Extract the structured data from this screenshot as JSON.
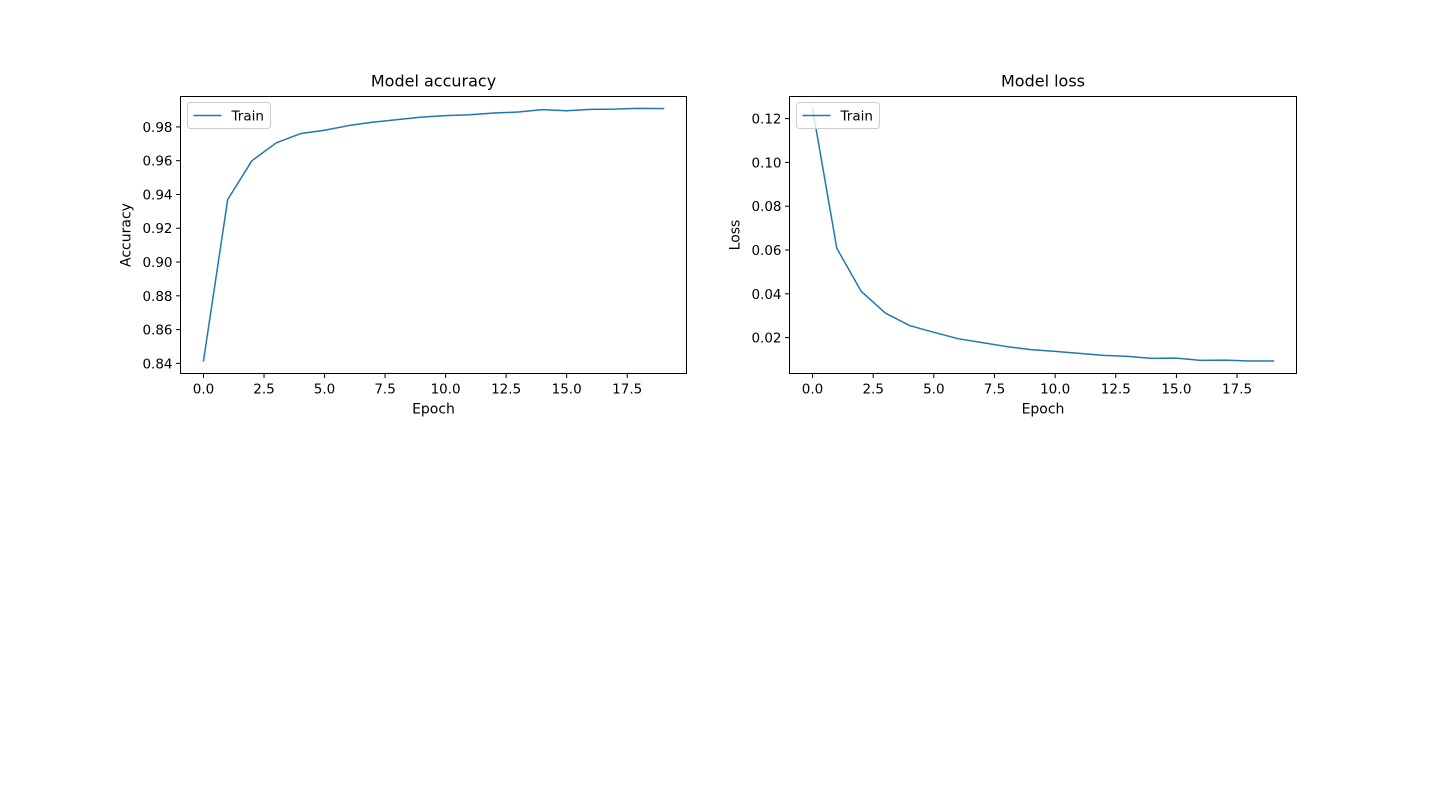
{
  "chart_data": [
    {
      "type": "line",
      "title": "Model accuracy",
      "xlabel": "Epoch",
      "ylabel": "Accuracy",
      "xlim": [
        -0.95,
        19.95
      ],
      "ylim": [
        0.834,
        0.998
      ],
      "xticks": [
        0.0,
        2.5,
        5.0,
        7.5,
        10.0,
        12.5,
        15.0,
        17.5
      ],
      "xtick_labels": [
        "0.0",
        "2.5",
        "5.0",
        "7.5",
        "10.0",
        "12.5",
        "15.0",
        "17.5"
      ],
      "yticks": [
        0.84,
        0.86,
        0.88,
        0.9,
        0.92,
        0.94,
        0.96,
        0.98
      ],
      "ytick_labels": [
        "0.84",
        "0.86",
        "0.88",
        "0.90",
        "0.92",
        "0.94",
        "0.96",
        "0.98"
      ],
      "grid": false,
      "legend_position": "upper-left",
      "x": [
        0,
        1,
        2,
        3,
        4,
        5,
        6,
        7,
        8,
        9,
        10,
        11,
        12,
        13,
        14,
        15,
        16,
        17,
        18,
        19
      ],
      "series": [
        {
          "name": "Train",
          "color": "#1f77b4",
          "values": [
            0.8415,
            0.937,
            0.96,
            0.9705,
            0.976,
            0.978,
            0.9808,
            0.9828,
            0.9843,
            0.9858,
            0.9867,
            0.9872,
            0.9882,
            0.9888,
            0.9902,
            0.9896,
            0.9904,
            0.9905,
            0.991,
            0.9908
          ]
        }
      ]
    },
    {
      "type": "line",
      "title": "Model loss",
      "xlabel": "Epoch",
      "ylabel": "Loss",
      "xlim": [
        -0.95,
        19.95
      ],
      "ylim": [
        0.0036,
        0.1301
      ],
      "xticks": [
        0.0,
        2.5,
        5.0,
        7.5,
        10.0,
        12.5,
        15.0,
        17.5
      ],
      "xtick_labels": [
        "0.0",
        "2.5",
        "5.0",
        "7.5",
        "10.0",
        "12.5",
        "15.0",
        "17.5"
      ],
      "yticks": [
        0.02,
        0.04,
        0.06,
        0.08,
        0.1,
        0.12
      ],
      "ytick_labels": [
        "0.02",
        "0.04",
        "0.06",
        "0.08",
        "0.10",
        "0.12"
      ],
      "grid": false,
      "legend_position": "upper-left",
      "x": [
        0,
        1,
        2,
        3,
        4,
        5,
        6,
        7,
        8,
        9,
        10,
        11,
        12,
        13,
        14,
        15,
        16,
        17,
        18,
        19
      ],
      "series": [
        {
          "name": "Train",
          "color": "#1f77b4",
          "values": [
            0.1245,
            0.0608,
            0.0412,
            0.0312,
            0.0255,
            0.0224,
            0.0195,
            0.0177,
            0.0159,
            0.0145,
            0.0137,
            0.0128,
            0.0119,
            0.0114,
            0.0105,
            0.0106,
            0.0096,
            0.0097,
            0.0093,
            0.0093
          ]
        }
      ]
    }
  ]
}
